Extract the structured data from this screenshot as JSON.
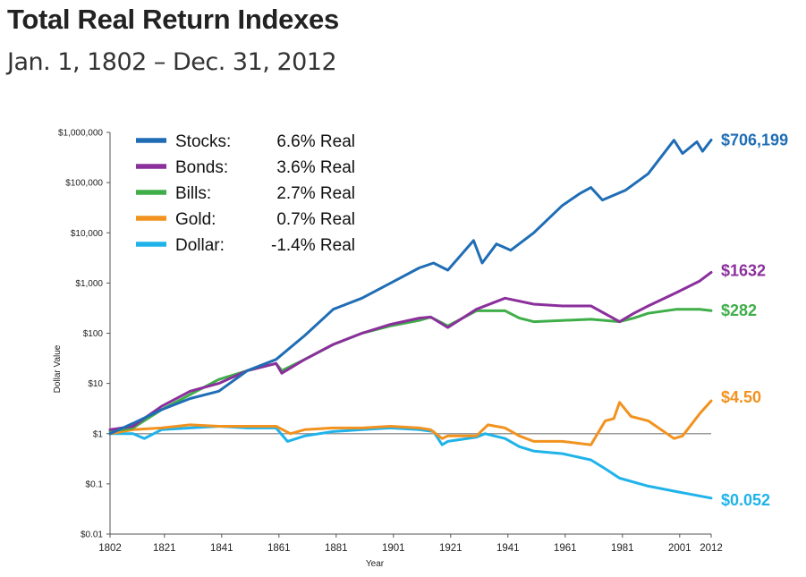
{
  "header": {
    "title": "Total Real Return Indexes",
    "subtitle": "Jan. 1, 1802 – Dec. 31, 2012"
  },
  "chart_data": {
    "type": "line",
    "title": "Total Real Return Indexes",
    "subtitle": "Jan. 1, 1802 – Dec. 31, 2012",
    "xlabel": "Year",
    "ylabel": "Dollar Value",
    "y_scale": "log",
    "xlim": [
      1802,
      2012
    ],
    "ylim": [
      0.01,
      1000000
    ],
    "x_ticks": [
      "1802",
      "1821",
      "1841",
      "1861",
      "1881",
      "1901",
      "1921",
      "1941",
      "1961",
      "1981",
      "2001",
      "2012"
    ],
    "y_ticks": [
      "$1,000,000",
      "$100,000",
      "$10,000",
      "$1,000",
      "$100",
      "$10",
      "$1",
      "$0.1",
      "$0.01"
    ],
    "reference_line": 1,
    "legend_position": "top-left",
    "series": [
      {
        "name": "Stocks: 6.6% Real",
        "legend_name": "Stocks:",
        "legend_rate": "6.6% Real",
        "color": "#1f6db5",
        "end_label": "$706,199",
        "points": [
          [
            1802,
            1
          ],
          [
            1810,
            1.6
          ],
          [
            1820,
            3
          ],
          [
            1830,
            5
          ],
          [
            1840,
            7
          ],
          [
            1850,
            18
          ],
          [
            1860,
            30
          ],
          [
            1870,
            90
          ],
          [
            1880,
            300
          ],
          [
            1890,
            500
          ],
          [
            1900,
            1000
          ],
          [
            1910,
            2000
          ],
          [
            1915,
            2500
          ],
          [
            1920,
            1800
          ],
          [
            1929,
            7000
          ],
          [
            1932,
            2500
          ],
          [
            1937,
            6000
          ],
          [
            1942,
            4500
          ],
          [
            1950,
            10000
          ],
          [
            1960,
            35000
          ],
          [
            1966,
            60000
          ],
          [
            1970,
            80000
          ],
          [
            1974,
            45000
          ],
          [
            1982,
            70000
          ],
          [
            1990,
            150000
          ],
          [
            1999,
            700000
          ],
          [
            2002,
            380000
          ],
          [
            2007,
            650000
          ],
          [
            2009,
            420000
          ],
          [
            2012,
            706199
          ]
        ]
      },
      {
        "name": "Bonds: 3.6% Real",
        "legend_name": "Bonds:",
        "legend_rate": "3.6% Real",
        "color": "#8b2f9c",
        "end_label": "$1632",
        "points": [
          [
            1802,
            1.2
          ],
          [
            1810,
            1.4
          ],
          [
            1820,
            3.5
          ],
          [
            1830,
            7
          ],
          [
            1840,
            10
          ],
          [
            1850,
            18
          ],
          [
            1860,
            25
          ],
          [
            1862,
            16
          ],
          [
            1870,
            30
          ],
          [
            1880,
            60
          ],
          [
            1890,
            100
          ],
          [
            1900,
            150
          ],
          [
            1910,
            200
          ],
          [
            1914,
            210
          ],
          [
            1920,
            130
          ],
          [
            1930,
            300
          ],
          [
            1940,
            500
          ],
          [
            1950,
            380
          ],
          [
            1960,
            350
          ],
          [
            1970,
            350
          ],
          [
            1980,
            170
          ],
          [
            1985,
            250
          ],
          [
            1990,
            350
          ],
          [
            2000,
            650
          ],
          [
            2008,
            1100
          ],
          [
            2012,
            1632
          ]
        ]
      },
      {
        "name": "Bills: 2.7% Real",
        "legend_name": "Bills:",
        "legend_rate": "2.7% Real",
        "color": "#3fae49",
        "end_label": "$282",
        "points": [
          [
            1802,
            1.1
          ],
          [
            1810,
            1.3
          ],
          [
            1820,
            3
          ],
          [
            1830,
            6
          ],
          [
            1840,
            12
          ],
          [
            1850,
            18
          ],
          [
            1860,
            25
          ],
          [
            1862,
            18
          ],
          [
            1870,
            30
          ],
          [
            1880,
            60
          ],
          [
            1890,
            100
          ],
          [
            1900,
            140
          ],
          [
            1910,
            180
          ],
          [
            1914,
            210
          ],
          [
            1920,
            140
          ],
          [
            1930,
            280
          ],
          [
            1940,
            280
          ],
          [
            1945,
            200
          ],
          [
            1950,
            170
          ],
          [
            1960,
            180
          ],
          [
            1970,
            190
          ],
          [
            1980,
            170
          ],
          [
            1985,
            200
          ],
          [
            1990,
            250
          ],
          [
            2000,
            300
          ],
          [
            2008,
            300
          ],
          [
            2012,
            282
          ]
        ]
      },
      {
        "name": "Gold: 0.7% Real",
        "legend_name": "Gold:",
        "legend_rate": "0.7% Real",
        "color": "#f2921f",
        "end_label": "$4.50",
        "points": [
          [
            1802,
            1
          ],
          [
            1810,
            1.2
          ],
          [
            1820,
            1.3
          ],
          [
            1830,
            1.5
          ],
          [
            1840,
            1.4
          ],
          [
            1850,
            1.4
          ],
          [
            1860,
            1.4
          ],
          [
            1865,
            1
          ],
          [
            1870,
            1.2
          ],
          [
            1880,
            1.3
          ],
          [
            1890,
            1.3
          ],
          [
            1900,
            1.4
          ],
          [
            1910,
            1.3
          ],
          [
            1914,
            1.2
          ],
          [
            1918,
            0.8
          ],
          [
            1920,
            0.9
          ],
          [
            1930,
            0.9
          ],
          [
            1934,
            1.5
          ],
          [
            1940,
            1.3
          ],
          [
            1945,
            0.9
          ],
          [
            1950,
            0.7
          ],
          [
            1960,
            0.7
          ],
          [
            1970,
            0.6
          ],
          [
            1975,
            1.8
          ],
          [
            1978,
            2
          ],
          [
            1980,
            4.2
          ],
          [
            1984,
            2.2
          ],
          [
            1990,
            1.8
          ],
          [
            1999,
            0.8
          ],
          [
            2002,
            0.9
          ],
          [
            2008,
            2.5
          ],
          [
            2012,
            4.5
          ]
        ]
      },
      {
        "name": "Dollar: -1.4% Real",
        "legend_name": "Dollar:",
        "legend_rate": "-1.4% Real",
        "color": "#1fb3ea",
        "end_label": "$0.052",
        "points": [
          [
            1802,
            1
          ],
          [
            1810,
            1
          ],
          [
            1814,
            0.8
          ],
          [
            1820,
            1.2
          ],
          [
            1830,
            1.3
          ],
          [
            1840,
            1.4
          ],
          [
            1850,
            1.3
          ],
          [
            1860,
            1.3
          ],
          [
            1864,
            0.7
          ],
          [
            1870,
            0.9
          ],
          [
            1880,
            1.1
          ],
          [
            1890,
            1.2
          ],
          [
            1900,
            1.3
          ],
          [
            1910,
            1.2
          ],
          [
            1915,
            1.1
          ],
          [
            1918,
            0.6
          ],
          [
            1920,
            0.7
          ],
          [
            1930,
            0.85
          ],
          [
            1933,
            1
          ],
          [
            1940,
            0.8
          ],
          [
            1945,
            0.55
          ],
          [
            1950,
            0.45
          ],
          [
            1960,
            0.4
          ],
          [
            1970,
            0.3
          ],
          [
            1975,
            0.2
          ],
          [
            1980,
            0.13
          ],
          [
            1990,
            0.09
          ],
          [
            2000,
            0.07
          ],
          [
            2012,
            0.052
          ]
        ]
      }
    ]
  }
}
